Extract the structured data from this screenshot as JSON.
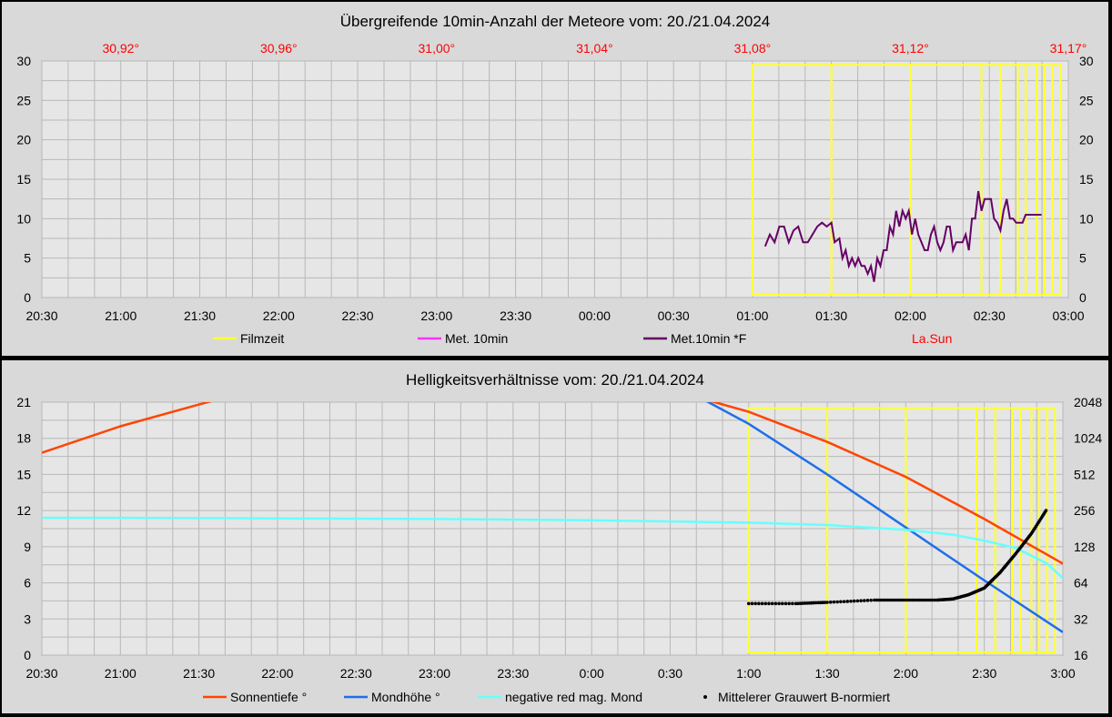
{
  "chart_data": [
    {
      "type": "line",
      "title": "Übergreifende 10min-Anzahl der Meteore vom: 20./21.04.2024",
      "x_ticks": [
        "20:30",
        "21:00",
        "21:30",
        "22:00",
        "22:30",
        "23:00",
        "23:30",
        "00:00",
        "00:30",
        "01:00",
        "01:30",
        "02:00",
        "02:30",
        "03:00"
      ],
      "xlim_hours": [
        20.5,
        27.0
      ],
      "ylim": [
        0,
        30
      ],
      "y_ticks": [
        0,
        5,
        10,
        15,
        20,
        25,
        30
      ],
      "y2_ticks": [
        0,
        5,
        10,
        15,
        20,
        25,
        30
      ],
      "top_axis_label": "La.Sun",
      "top_ticks": [
        {
          "label": "30,92°",
          "t": 21.0
        },
        {
          "label": "30,96°",
          "t": 22.0
        },
        {
          "label": "31,00°",
          "t": 23.0
        },
        {
          "label": "31,04°",
          "t": 24.0
        },
        {
          "label": "31,08°",
          "t": 25.0
        },
        {
          "label": "31,12°",
          "t": 26.0
        },
        {
          "label": "31,17°",
          "t": 27.0
        }
      ],
      "grid": true,
      "legend_position": "bottom",
      "legend": [
        {
          "name": "Filmzeit",
          "color": "#ffff33"
        },
        {
          "name": "Met. 10min",
          "color": "#ff33ff"
        },
        {
          "name": "Met.10min *F",
          "color": "#660066"
        },
        {
          "name": "La.Sun",
          "color": "#ff0000"
        }
      ],
      "filmzeit": {
        "ymin": 0,
        "ymax": 29.5,
        "segments": [
          [
            25.0,
            25.5
          ],
          [
            25.5,
            26.0
          ],
          [
            26.0,
            26.45
          ],
          [
            26.45,
            26.57
          ],
          [
            26.57,
            26.68
          ],
          [
            26.68,
            26.73
          ],
          [
            26.73,
            26.8
          ],
          [
            26.8,
            26.85
          ],
          [
            26.85,
            26.9
          ],
          [
            26.9,
            26.95
          ]
        ],
        "thick": [
          25.0,
          25.5,
          25.51,
          26.45,
          26.57,
          26.58
        ]
      },
      "series": [
        {
          "name": "Met.10min *F",
          "color": "#660066",
          "x": [
            25.08,
            25.11,
            25.14,
            25.17,
            25.2,
            25.23,
            25.26,
            25.29,
            25.32,
            25.35,
            25.38,
            25.41,
            25.44,
            25.47,
            25.5,
            25.52,
            25.55,
            25.57,
            25.59,
            25.61,
            25.63,
            25.65,
            25.67,
            25.69,
            25.71,
            25.73,
            25.75,
            25.77,
            25.79,
            25.81,
            25.83,
            25.85,
            25.87,
            25.89,
            25.91,
            25.93,
            25.95,
            25.97,
            25.99,
            26.01,
            26.03,
            26.05,
            26.07,
            26.09,
            26.11,
            26.13,
            26.15,
            26.17,
            26.19,
            26.21,
            26.23,
            26.25,
            26.27,
            26.29,
            26.31,
            26.33,
            26.35,
            26.37,
            26.39,
            26.41,
            26.43,
            26.45,
            26.47,
            26.49,
            26.51,
            26.53,
            26.55,
            26.57,
            26.59,
            26.61,
            26.63,
            26.65,
            26.67,
            26.69,
            26.71,
            26.73,
            26.75,
            26.77,
            26.79,
            26.81,
            26.83
          ],
          "y": [
            6.5,
            8,
            7,
            9,
            9,
            7,
            8.5,
            9,
            7,
            7,
            8,
            9,
            9.5,
            9,
            9.5,
            7,
            7.5,
            5,
            6,
            4,
            5,
            4,
            5,
            4,
            4,
            3,
            4,
            2,
            5,
            4,
            6,
            6,
            9,
            8,
            11,
            9,
            11,
            10,
            11,
            8,
            10,
            8,
            7,
            6,
            6,
            8,
            9,
            7,
            6,
            7,
            9,
            9,
            6,
            7,
            7,
            7,
            8,
            6,
            10,
            10,
            13.5,
            11,
            12.5,
            12.5,
            12.5,
            10,
            9.5,
            8.5,
            11,
            12.5,
            10,
            10,
            9.5,
            9.5,
            9.5,
            10.5,
            10.5,
            10.5,
            10.5,
            10.5,
            10.5
          ]
        }
      ]
    },
    {
      "type": "line",
      "title": "Helligkeitsverhältnisse vom: 20./21.04.2024",
      "x_ticks": [
        "20:30",
        "21:00",
        "21:30",
        "22:00",
        "22:30",
        "23:00",
        "23:30",
        "0:00",
        "0:30",
        "1:00",
        "1:30",
        "2:00",
        "2:30",
        "3:00"
      ],
      "xlim_hours": [
        20.5,
        27.0
      ],
      "ylim": [
        0,
        21
      ],
      "y_ticks": [
        0,
        3,
        6,
        9,
        12,
        15,
        18,
        21
      ],
      "y2_scale": "log2",
      "y2_ticks": [
        16,
        32,
        64,
        128,
        256,
        512,
        1024,
        2048
      ],
      "grid": true,
      "legend_position": "bottom",
      "legend": [
        {
          "name": "Sonnentiefe °",
          "color": "#ff4500"
        },
        {
          "name": "Mondhöhe °",
          "color": "#1e6fe8"
        },
        {
          "name": "negative red mag. Mond",
          "color": "#66ffff"
        },
        {
          "name": "Mittelerer Grauwert B-normiert",
          "color": "#000000"
        }
      ],
      "filmzeit": {
        "ymin": 0,
        "ymax": 20.5,
        "segments": [
          [
            25.0,
            25.5
          ],
          [
            25.5,
            26.0
          ],
          [
            26.0,
            26.45
          ],
          [
            26.45,
            26.57
          ],
          [
            26.57,
            26.68
          ],
          [
            26.68,
            26.73
          ],
          [
            26.73,
            26.8
          ],
          [
            26.8,
            26.85
          ],
          [
            26.85,
            26.9
          ],
          [
            26.9,
            26.95
          ]
        ]
      },
      "series": [
        {
          "name": "Sonnentiefe °",
          "color": "#ff4500",
          "x": [
            20.5,
            21.0,
            21.5,
            21.7
          ],
          "y": [
            16.8,
            19.0,
            20.8,
            21.5
          ]
        },
        {
          "name": "Sonnentiefe °",
          "color": "#ff4500",
          "x": [
            24.7,
            25.0,
            25.5,
            26.0,
            26.5,
            27.0
          ],
          "y": [
            21.3,
            20.2,
            17.7,
            14.8,
            11.3,
            7.6
          ]
        },
        {
          "name": "Mondhöhe °",
          "color": "#1e6fe8",
          "x": [
            24.7,
            25.0,
            25.5,
            26.0,
            26.5,
            27.0
          ],
          "y": [
            21.3,
            19.2,
            15.0,
            10.6,
            6.2,
            1.9
          ]
        },
        {
          "name": "negative red mag. Mond",
          "color": "#66ffff",
          "x": [
            20.5,
            21.0,
            22.0,
            23.0,
            24.0,
            24.5,
            25.0,
            25.5,
            26.0,
            26.3,
            26.5,
            26.7,
            26.9,
            27.0
          ],
          "y": [
            11.4,
            11.4,
            11.35,
            11.3,
            11.2,
            11.1,
            11.0,
            10.8,
            10.4,
            10.0,
            9.5,
            8.9,
            7.6,
            6.4
          ]
        },
        {
          "name": "Mittelerer Grauwert B-normiert",
          "color": "#000000",
          "x": [
            25.0,
            25.3,
            25.5,
            25.8,
            26.0,
            26.2,
            26.3,
            26.4,
            26.5,
            26.6,
            26.7,
            26.8,
            26.9
          ],
          "y2": [
            43,
            43,
            44,
            46,
            46,
            46,
            47,
            51,
            58,
            78,
            112,
            165,
            265
          ]
        }
      ]
    }
  ]
}
